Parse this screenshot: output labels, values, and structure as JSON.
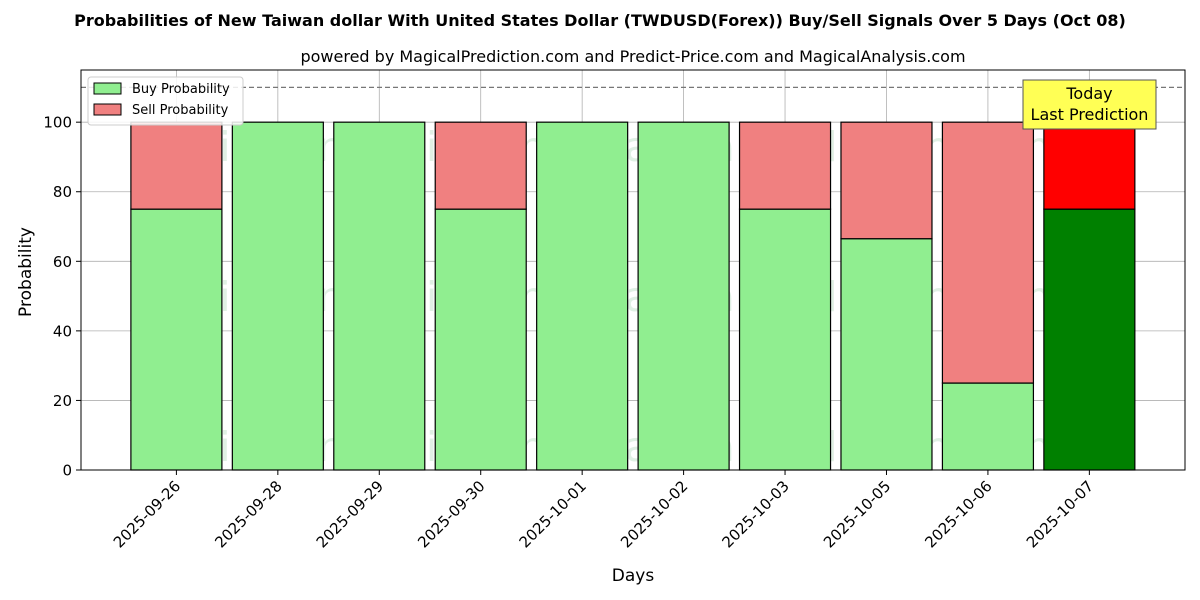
{
  "chart_data": {
    "type": "bar",
    "stacked": true,
    "title": "Probabilities of New Taiwan dollar With United States Dollar (TWDUSD(Forex)) Buy/Sell Signals Over 5 Days (Oct 08)",
    "subtitle": "powered by MagicalPrediction.com and Predict-Price.com and MagicalAnalysis.com",
    "xlabel": "Days",
    "ylabel": "Probability",
    "ylim": [
      0,
      115
    ],
    "yticks": [
      0,
      20,
      40,
      60,
      80,
      100
    ],
    "reference_line": 110,
    "grid": true,
    "legend_position": "top-left",
    "categories": [
      "2025-09-26",
      "2025-09-28",
      "2025-09-29",
      "2025-09-30",
      "2025-10-01",
      "2025-10-02",
      "2025-10-03",
      "2025-10-05",
      "2025-10-06",
      "2025-10-07"
    ],
    "series": [
      {
        "name": "Buy Probability",
        "color": "#90ee90",
        "values": [
          75,
          100,
          100,
          75,
          100,
          100,
          75,
          66.5,
          25,
          75
        ]
      },
      {
        "name": "Sell Probability",
        "color": "#f08080",
        "values": [
          25,
          0,
          0,
          25,
          0,
          0,
          25,
          33.5,
          75,
          25
        ]
      }
    ],
    "highlight": {
      "index": 9,
      "buy_color": "#008000",
      "sell_color": "#ff0000"
    },
    "annotation": {
      "lines": [
        "Today",
        "Last Prediction"
      ],
      "background": "#ffff55"
    },
    "watermarks": [
      "MagicalAnalysis.com",
      "MagicalPrediction.com"
    ]
  }
}
